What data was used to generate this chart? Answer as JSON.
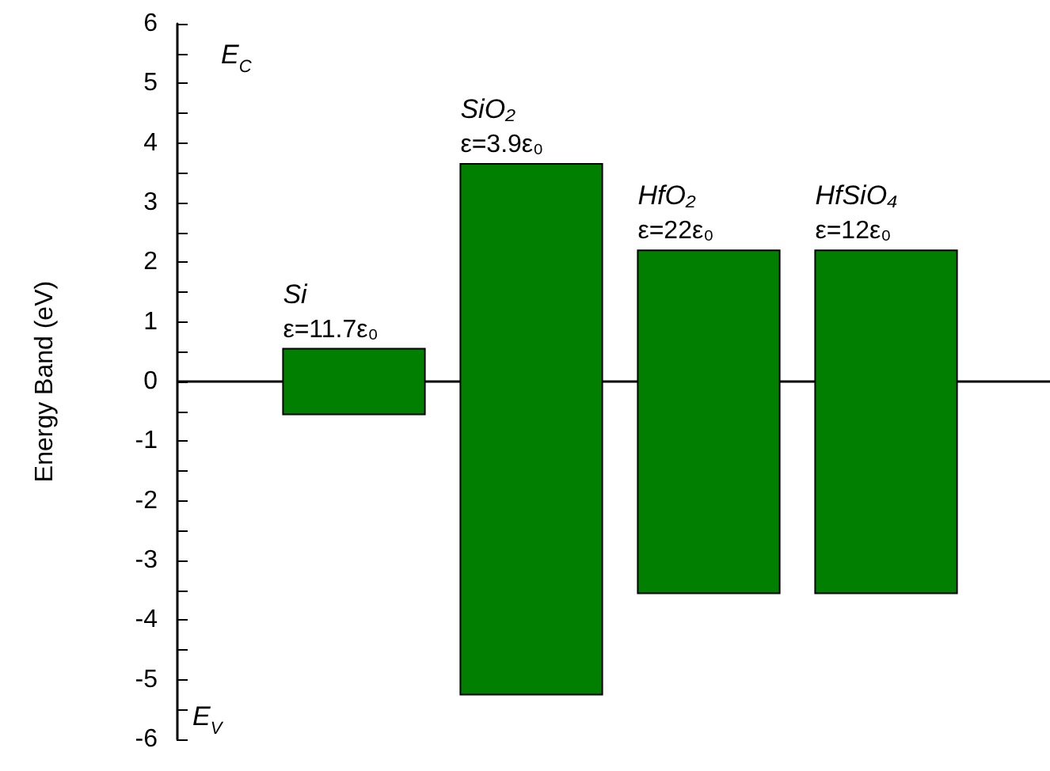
{
  "chart_data": {
    "type": "bar",
    "categories": [
      "Si",
      "SiO₂",
      "HfO₂",
      "HfSiO₄"
    ],
    "base": [
      -0.55,
      -5.25,
      -3.55,
      -3.55
    ],
    "values": [
      1.1,
      8.9,
      5.75,
      5.75
    ],
    "color": "#007f00",
    "ylabel": "Energy Band (eV)",
    "ylim": [
      -6,
      6
    ],
    "yticks": [
      -6,
      {
        "value": -5.5,
        "label": null
      },
      -5,
      {
        "value": -4.5,
        "label": null
      },
      -4,
      {
        "value": -3.5,
        "label": null
      },
      -3,
      {
        "value": -2.5,
        "label": null
      },
      -2,
      {
        "value": -1.5,
        "label": null
      },
      -1,
      {
        "value": -0.5,
        "label": null
      },
      0,
      {
        "value": 0.5,
        "label": null
      },
      1,
      {
        "value": 1.5,
        "label": null
      },
      2,
      {
        "value": 2.5,
        "label": null
      },
      3,
      {
        "value": 3.5,
        "label": null
      },
      4,
      {
        "value": 4.5,
        "label": null
      },
      5,
      {
        "value": 5.5,
        "label": null
      },
      6
    ],
    "ref_lines": [
      {
        "axis": "y",
        "value": 0,
        "color": "#000000"
      }
    ],
    "annotations": [
      "E$_{C}$",
      "E$_{V}$",
      {
        "text": "ε=11.7ε₀",
        "x": "Si",
        "y": 0.55
      },
      {
        "text": "ε=3.9ε₀",
        "x": "SiO₂",
        "y": 3.65
      },
      {
        "text": "ε=22ε₀",
        "x": "HfO₂",
        "y": 2.2
      },
      {
        "text": "ε=12ε₀",
        "x": "HfSiO₄",
        "y": 2.2
      }
    ]
  }
}
